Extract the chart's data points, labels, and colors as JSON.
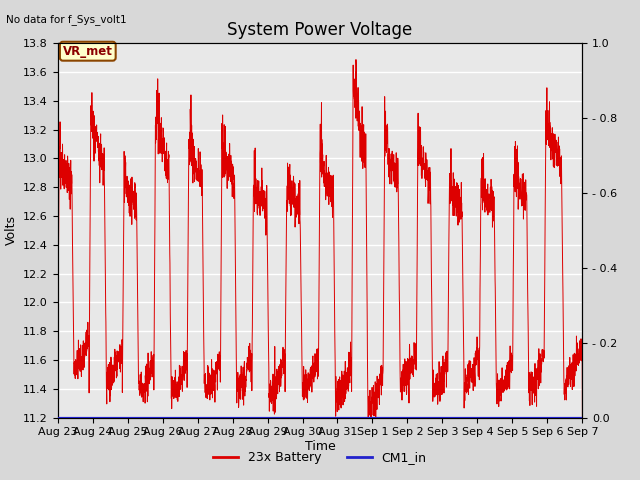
{
  "title": "System Power Voltage",
  "top_left_text": "No data for f_Sys_volt1",
  "ylabel_left": "Volts",
  "xlabel": "Time",
  "ylim_left": [
    11.2,
    13.8
  ],
  "ylim_right": [
    0.0,
    1.0
  ],
  "yticks_left": [
    11.2,
    11.4,
    11.6,
    11.8,
    12.0,
    12.2,
    12.4,
    12.6,
    12.8,
    13.0,
    13.2,
    13.4,
    13.6,
    13.8
  ],
  "yticks_right": [
    0.0,
    0.2,
    0.4,
    0.6,
    0.8,
    1.0
  ],
  "background_color": "#d8d8d8",
  "plot_bg_color": "#e8e8e8",
  "legend_entries": [
    "23x Battery",
    "CM1_in"
  ],
  "legend_colors": [
    "#dd0000",
    "#2222cc"
  ],
  "vr_met_label": "VR_met",
  "vr_met_color_bg": "#ffffcc",
  "vr_met_color_border": "#8b4500",
  "title_fontsize": 12,
  "label_fontsize": 9,
  "tick_fontsize": 8,
  "total_days": 15,
  "xtick_labels": [
    "Aug 23",
    "Aug 24",
    "Aug 25",
    "Aug 26",
    "Aug 27",
    "Aug 28",
    "Aug 29",
    "Aug 30",
    "Aug 31",
    "Sep 1",
    "Sep 2",
    "Sep 3",
    "Sep 4",
    "Sep 5",
    "Sep 6",
    "Sep 7"
  ],
  "cycle_starts": [
    0.0,
    0.9,
    1.85,
    2.75,
    3.7,
    4.65,
    5.55,
    6.5,
    7.45,
    8.4,
    9.3,
    10.25,
    11.15,
    12.05,
    13.0,
    13.9
  ],
  "cycle_peaks": [
    12.95,
    13.22,
    12.8,
    13.27,
    13.07,
    13.04,
    12.8,
    12.75,
    13.0,
    13.52,
    13.1,
    13.04,
    12.76,
    12.75,
    12.85,
    13.22
  ],
  "cycle_troughs": [
    11.52,
    11.45,
    11.36,
    11.36,
    11.38,
    11.38,
    11.35,
    11.38,
    11.32,
    11.26,
    11.42,
    11.38,
    11.4,
    11.35,
    11.38,
    11.45
  ],
  "num_points": 3000
}
